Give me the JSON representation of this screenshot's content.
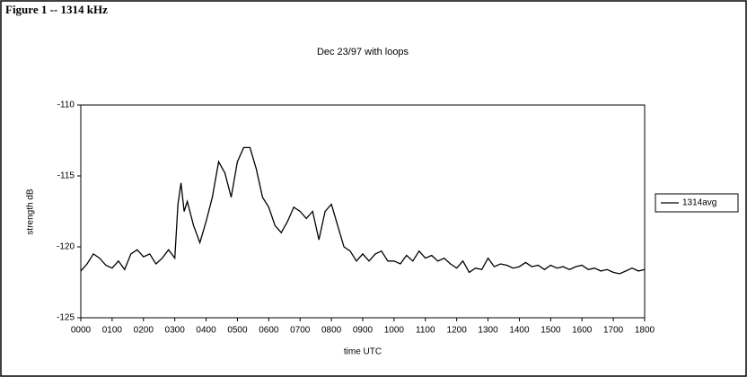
{
  "figure_label": "Figure 1 -- 1314 kHz",
  "chart_data": {
    "type": "line",
    "title": "Dec 23/97 with loops",
    "x_label": "time UTC",
    "y_label": "strength dB",
    "x": [
      0.0,
      0.2,
      0.4,
      0.6,
      0.8,
      1.0,
      1.2,
      1.4,
      1.6,
      1.8,
      2.0,
      2.2,
      2.4,
      2.6,
      2.8,
      3.0,
      3.1,
      3.2,
      3.3,
      3.4,
      3.6,
      3.8,
      4.0,
      4.2,
      4.4,
      4.6,
      4.8,
      5.0,
      5.2,
      5.4,
      5.6,
      5.8,
      6.0,
      6.2,
      6.4,
      6.6,
      6.8,
      7.0,
      7.2,
      7.4,
      7.6,
      7.8,
      8.0,
      8.2,
      8.4,
      8.6,
      8.8,
      9.0,
      9.2,
      9.4,
      9.6,
      9.8,
      10.0,
      10.2,
      10.4,
      10.6,
      10.8,
      11.0,
      11.2,
      11.4,
      11.6,
      11.8,
      12.0,
      12.2,
      12.4,
      12.6,
      12.8,
      13.0,
      13.2,
      13.4,
      13.6,
      13.8,
      14.0,
      14.2,
      14.4,
      14.6,
      14.8,
      15.0,
      15.2,
      15.4,
      15.6,
      15.8,
      16.0,
      16.2,
      16.4,
      16.6,
      16.8,
      17.0,
      17.2,
      17.4,
      17.6,
      17.8,
      18.0
    ],
    "series": [
      {
        "name": "1314avg",
        "color": "#000000",
        "values": [
          -121.7,
          -121.2,
          -120.5,
          -120.8,
          -121.3,
          -121.5,
          -121.0,
          -121.6,
          -120.5,
          -120.2,
          -120.7,
          -120.5,
          -121.2,
          -120.8,
          -120.2,
          -120.8,
          -117.0,
          -115.5,
          -117.5,
          -116.8,
          -118.5,
          -119.7,
          -118.2,
          -116.5,
          -114.0,
          -114.8,
          -116.5,
          -114.0,
          -113.0,
          -113.0,
          -114.5,
          -116.5,
          -117.2,
          -118.5,
          -119.0,
          -118.2,
          -117.2,
          -117.5,
          -118.0,
          -117.5,
          -119.5,
          -117.5,
          -117.0,
          -118.5,
          -120.0,
          -120.3,
          -121.0,
          -120.5,
          -121.0,
          -120.5,
          -120.3,
          -121.0,
          -121.0,
          -121.2,
          -120.6,
          -121.0,
          -120.3,
          -120.8,
          -120.6,
          -121.0,
          -120.8,
          -121.2,
          -121.5,
          -121.0,
          -121.8,
          -121.5,
          -121.6,
          -120.8,
          -121.4,
          -121.2,
          -121.3,
          -121.5,
          -121.4,
          -121.1,
          -121.4,
          -121.3,
          -121.6,
          -121.3,
          -121.5,
          -121.4,
          -121.6,
          -121.4,
          -121.3,
          -121.6,
          -121.5,
          -121.7,
          -121.6,
          -121.8,
          -121.9,
          -121.7,
          -121.5,
          -121.7,
          -121.6
        ]
      }
    ],
    "xlim": [
      0,
      18
    ],
    "xticks": [
      {
        "value": 0,
        "label": "0000"
      },
      {
        "value": 1,
        "label": "0100"
      },
      {
        "value": 2,
        "label": "0200"
      },
      {
        "value": 3,
        "label": "0300"
      },
      {
        "value": 4,
        "label": "0400"
      },
      {
        "value": 5,
        "label": "0500"
      },
      {
        "value": 6,
        "label": "0600"
      },
      {
        "value": 7,
        "label": "0700"
      },
      {
        "value": 8,
        "label": "0800"
      },
      {
        "value": 9,
        "label": "0900"
      },
      {
        "value": 10,
        "label": "1000"
      },
      {
        "value": 11,
        "label": "1100"
      },
      {
        "value": 12,
        "label": "1200"
      },
      {
        "value": 13,
        "label": "1300"
      },
      {
        "value": 14,
        "label": "1400"
      },
      {
        "value": 15,
        "label": "1500"
      },
      {
        "value": 16,
        "label": "1600"
      },
      {
        "value": 17,
        "label": "1700"
      },
      {
        "value": 18,
        "label": "1800"
      }
    ],
    "ylim": [
      -125,
      -110
    ],
    "yticks": [
      -125,
      -120,
      -115,
      -110
    ],
    "legend": "right",
    "grid": false
  }
}
